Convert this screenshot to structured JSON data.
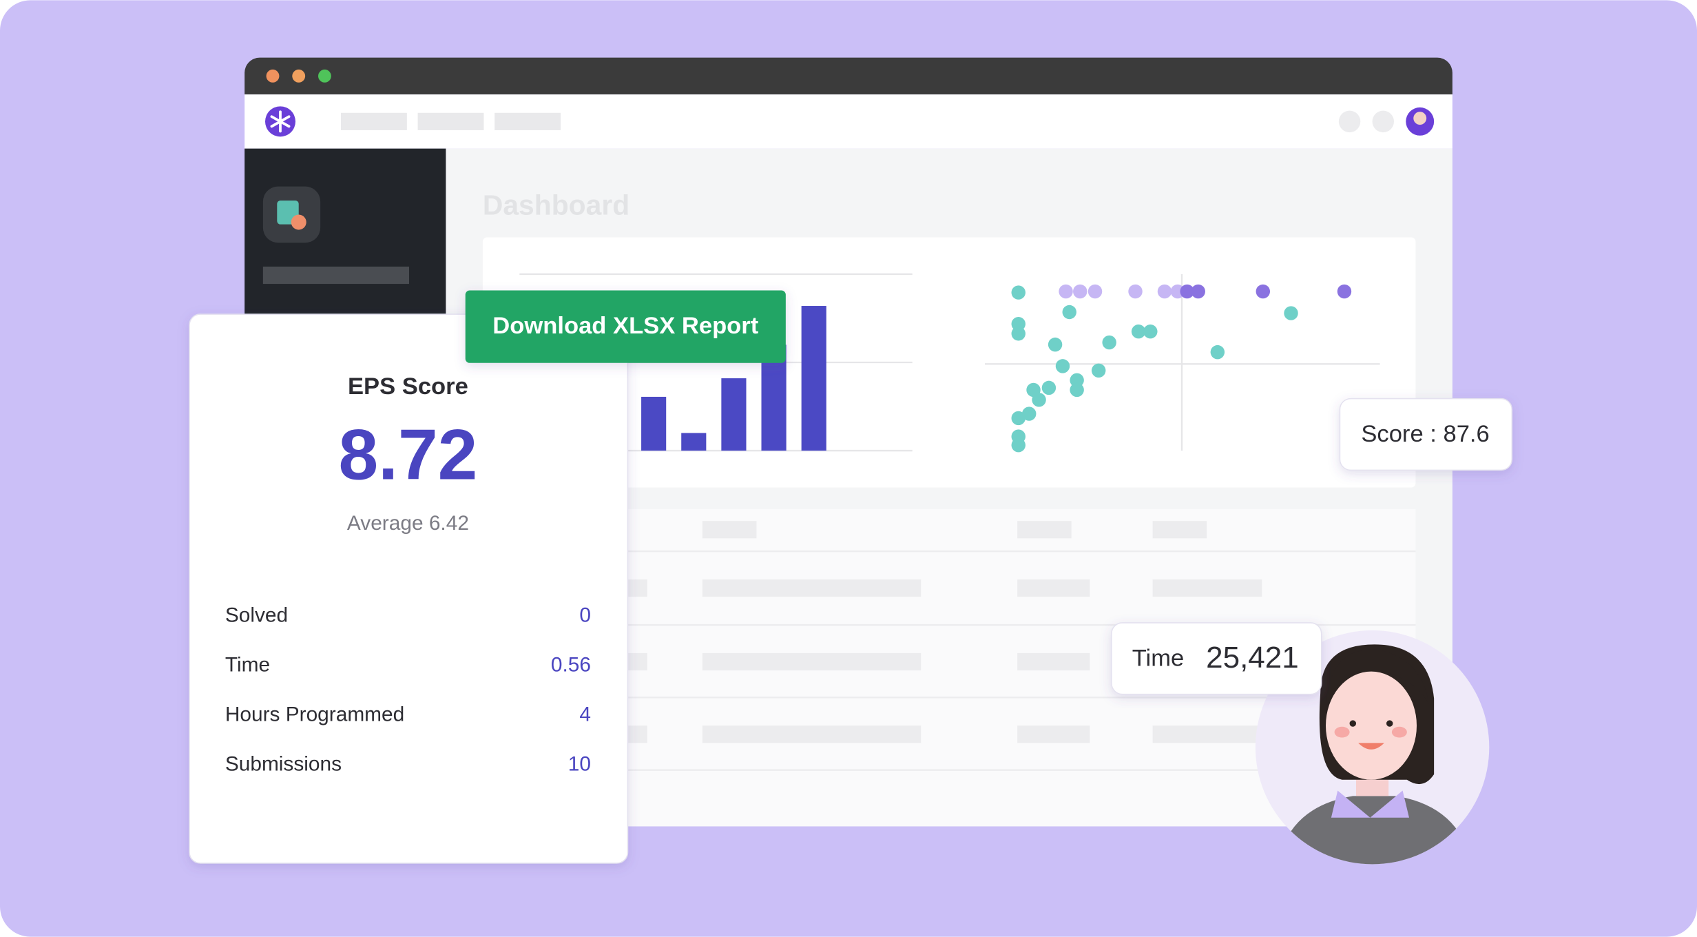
{
  "page_title": "Dashboard",
  "download_button": "Download XLSX Report",
  "bar_chart": {
    "type": "bar",
    "values": [
      0.61,
      0.2,
      0.82,
      1.2,
      1.64
    ],
    "color": "#4b49c4",
    "ylim": [
      0,
      2
    ],
    "yticks": [
      0,
      1,
      2
    ],
    "grid": true
  },
  "scatter_chart": {
    "type": "scatter",
    "xlim": [
      0,
      100
    ],
    "ylim": [
      0,
      100
    ],
    "series": [
      {
        "color": "#6fd0c8",
        "x": [
          8.5,
          8.5,
          8.5,
          21.4,
          17.8,
          31.5,
          38.9,
          41.9,
          58.9,
          19.7,
          28.8,
          23.3,
          23.3,
          16.2,
          12.3,
          13.7,
          11.2,
          8.5,
          8.5,
          8.5,
          77.5
        ],
        "y": [
          89.6,
          71.8,
          66.3,
          78.5,
          60.1,
          61.3,
          67.5,
          67.5,
          55.8,
          47.9,
          45.4,
          39.9,
          34.4,
          35.6,
          34.4,
          28.8,
          20.9,
          18.4,
          8.0,
          3.1,
          77.9
        ]
      },
      {
        "color": "#c6b6f4",
        "x": [
          20.5,
          24.1,
          27.9,
          38.1,
          45.5,
          48.8
        ],
        "y": [
          90.2,
          90.2,
          90.2,
          90.2,
          90.2,
          90.2
        ]
      },
      {
        "color": "#8a72e0",
        "x": [
          51.2,
          54.0,
          70.4,
          91.0
        ],
        "y": [
          90.2,
          90.2,
          90.2,
          90.2
        ]
      }
    ]
  },
  "eps_card": {
    "title": "EPS Score",
    "score": 8.72,
    "average": "Average 6.42",
    "stats": [
      {
        "label": "Solved",
        "value": 0
      },
      {
        "label": "Time",
        "value": 0.56
      },
      {
        "label": "Hours Programmed",
        "value": 4
      },
      {
        "label": "Submissions",
        "value": 10
      }
    ]
  },
  "score_tooltip": "Score : 87.6",
  "time_tooltip": {
    "label": "Time",
    "value": "25,421"
  }
}
